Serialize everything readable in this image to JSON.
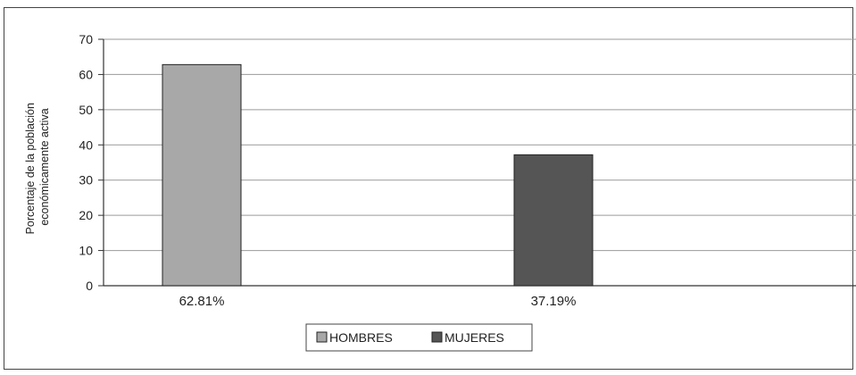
{
  "chart_data": {
    "type": "bar",
    "ylabel": "Porcentaje de la población económicamente activa",
    "ylabel_lines": [
      "Porcentaje de la población",
      "económicamente activa"
    ],
    "ylim": [
      0,
      70
    ],
    "yticks": [
      0,
      10,
      20,
      30,
      40,
      50,
      60,
      70
    ],
    "grid": true,
    "legend_position": "bottom",
    "series": [
      {
        "name": "HOMBRES",
        "value": 62.81,
        "label": "62.81%",
        "color": "#a8a8a8"
      },
      {
        "name": "MUJERES",
        "value": 37.19,
        "label": "37.19%",
        "color": "#555555"
      }
    ]
  }
}
